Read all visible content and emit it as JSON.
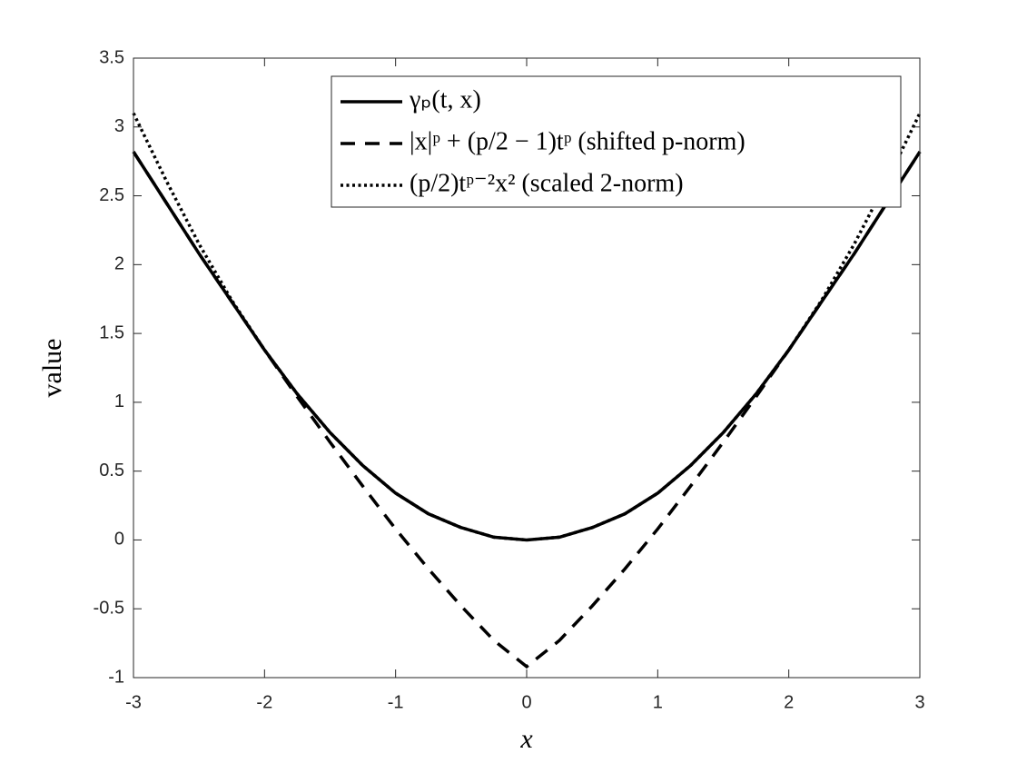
{
  "chart_data": {
    "type": "line",
    "xlabel": "x",
    "ylabel": "value",
    "x": [
      -3,
      -2.75,
      -2.5,
      -2.25,
      -2,
      -1.75,
      -1.5,
      -1.25,
      -1,
      -0.75,
      -0.5,
      -0.25,
      0,
      0.25,
      0.5,
      0.75,
      1,
      1.25,
      1.5,
      1.75,
      2,
      2.25,
      2.5,
      2.75,
      3
    ],
    "series": [
      {
        "name": "γₚ(t, x)",
        "color": "#000000",
        "style": "solid",
        "values": [
          2.82,
          2.45,
          2.08,
          1.73,
          1.38,
          1.06,
          0.78,
          0.54,
          0.34,
          0.19,
          0.09,
          0.02,
          0,
          0.02,
          0.09,
          0.19,
          0.34,
          0.54,
          0.78,
          1.06,
          1.38,
          1.73,
          2.08,
          2.45,
          2.82
        ]
      },
      {
        "name": "|x|ᵖ + (p/2 − 1)tᵖ (shifted p-norm)",
        "color": "#000000",
        "style": "dashed",
        "values": [
          2.82,
          2.45,
          2.08,
          1.73,
          1.38,
          1.04,
          0.71,
          0.39,
          0.08,
          -0.21,
          -0.48,
          -0.73,
          -0.92,
          -0.73,
          -0.48,
          -0.21,
          0.08,
          0.39,
          0.71,
          1.04,
          1.38,
          1.73,
          2.08,
          2.45,
          2.82
        ]
      },
      {
        "name": "(p/2)tᵖ⁻²x² (scaled 2-norm)",
        "color": "#000000",
        "style": "dotted",
        "values": [
          3.1,
          2.61,
          2.15,
          1.74,
          1.38,
          1.06,
          0.78,
          0.54,
          0.34,
          0.19,
          0.09,
          0.02,
          0,
          0.02,
          0.09,
          0.19,
          0.34,
          0.54,
          0.78,
          1.06,
          1.38,
          1.74,
          2.15,
          2.61,
          3.1
        ]
      }
    ],
    "xlim": [
      -3,
      3
    ],
    "xticks": [
      -3,
      -2,
      -1,
      0,
      1,
      2,
      3
    ],
    "ylim": [
      -1,
      3.5
    ],
    "yticks": [
      -1,
      -0.5,
      0,
      0.5,
      1,
      1.5,
      2,
      2.5,
      3,
      3.5
    ],
    "grid": false,
    "legend": "upper right"
  }
}
